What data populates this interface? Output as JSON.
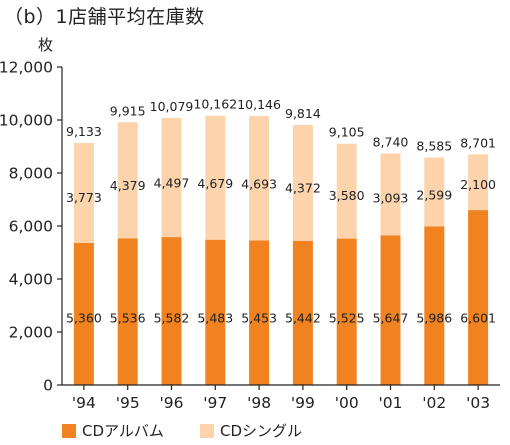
{
  "chart_data": {
    "type": "bar",
    "stacked": true,
    "title": "（b）1店舗平均在庫数",
    "ylabel": "枚",
    "xlabel": "",
    "ylim": [
      0,
      12000
    ],
    "yticks": [
      0,
      2000,
      4000,
      6000,
      8000,
      10000,
      12000
    ],
    "ytick_labels": [
      "0",
      "2,000",
      "4,000",
      "6,000",
      "8,000",
      "10,000",
      "12,000"
    ],
    "grid": false,
    "categories": [
      "'94",
      "'95",
      "'96",
      "'97",
      "'98",
      "'99",
      "'00",
      "'01",
      "'02",
      "'03"
    ],
    "series": [
      {
        "name": "CDアルバム",
        "color": "#f0831f",
        "values": [
          5360,
          5536,
          5582,
          5483,
          5453,
          5442,
          5525,
          5647,
          5986,
          6601
        ],
        "labels": [
          "5,360",
          "5,536",
          "5,582",
          "5,483",
          "5,453",
          "5,442",
          "5,525",
          "5,647",
          "5,986",
          "6,601"
        ]
      },
      {
        "name": "CDシングル",
        "color": "#fcd3ab",
        "values": [
          3773,
          4379,
          4497,
          4679,
          4693,
          4372,
          3580,
          3093,
          2599,
          2100
        ],
        "labels": [
          "3,773",
          "4,379",
          "4,497",
          "4,679",
          "4,693",
          "4,372",
          "3,580",
          "3,093",
          "2,599",
          "2,100"
        ]
      }
    ],
    "totals": [
      9133,
      9915,
      10079,
      10162,
      10146,
      9814,
      9105,
      8740,
      8585,
      8701
    ],
    "total_labels": [
      "9,133",
      "9,915",
      "10,079",
      "10,162",
      "10,146",
      "9,814",
      "9,105",
      "8,740",
      "8,585",
      "8,701"
    ],
    "legend_position": "bottom-left"
  }
}
